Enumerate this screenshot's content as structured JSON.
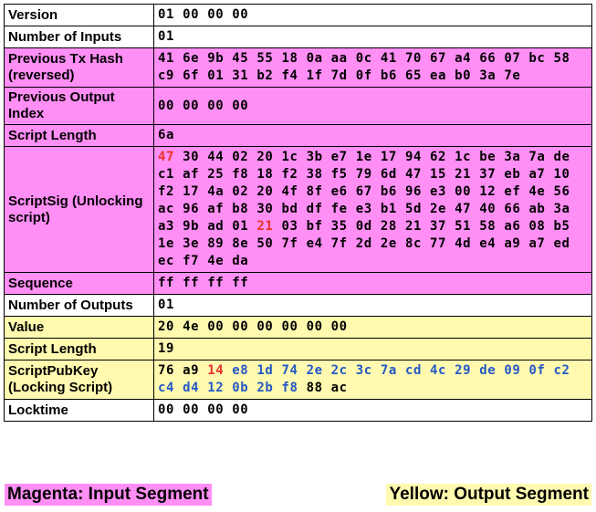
{
  "colors": {
    "input_segment": "#ff8ef5",
    "output_segment": "#fffab0",
    "plain": "#ffffff",
    "length_byte": "#e8332a",
    "pubkey_hash": "#2458c4",
    "default_text": "#000000"
  },
  "rows": [
    {
      "field": "Version",
      "segment": "plain",
      "tokens": [
        {
          "t": "01"
        },
        {
          "t": "00"
        },
        {
          "t": "00"
        },
        {
          "t": "00"
        }
      ]
    },
    {
      "field": "Number of Inputs",
      "segment": "plain",
      "tokens": [
        {
          "t": "01"
        }
      ]
    },
    {
      "field": "Previous Tx Hash (reversed)",
      "segment": "input",
      "tokens": [
        {
          "t": "41"
        },
        {
          "t": "6e"
        },
        {
          "t": "9b"
        },
        {
          "t": "45"
        },
        {
          "t": "55"
        },
        {
          "t": "18"
        },
        {
          "t": "0a"
        },
        {
          "t": "aa"
        },
        {
          "t": "0c"
        },
        {
          "t": "41"
        },
        {
          "t": "70"
        },
        {
          "t": "67"
        },
        {
          "t": "a4"
        },
        {
          "t": "66"
        },
        {
          "t": "07"
        },
        {
          "t": "bc"
        },
        {
          "t": "58"
        },
        {
          "t": "c9"
        },
        {
          "t": "6f"
        },
        {
          "t": "01"
        },
        {
          "t": "31"
        },
        {
          "t": "b2"
        },
        {
          "t": "f4"
        },
        {
          "t": "1f"
        },
        {
          "t": "7d"
        },
        {
          "t": "0f"
        },
        {
          "t": "b6"
        },
        {
          "t": "65"
        },
        {
          "t": "ea"
        },
        {
          "t": "b0"
        },
        {
          "t": "3a"
        },
        {
          "t": "7e"
        }
      ]
    },
    {
      "field": "Previous Output Index",
      "segment": "input",
      "tokens": [
        {
          "t": "00"
        },
        {
          "t": "00"
        },
        {
          "t": "00"
        },
        {
          "t": "00"
        }
      ]
    },
    {
      "field": "Script Length",
      "segment": "input",
      "tokens": [
        {
          "t": "6a"
        }
      ]
    },
    {
      "field": "ScriptSig (Unlocking script)",
      "segment": "input",
      "tokens": [
        {
          "t": "47",
          "c": "red"
        },
        {
          "t": "30"
        },
        {
          "t": "44"
        },
        {
          "t": "02"
        },
        {
          "t": "20"
        },
        {
          "t": "1c"
        },
        {
          "t": "3b"
        },
        {
          "t": "e7"
        },
        {
          "t": "1e"
        },
        {
          "t": "17"
        },
        {
          "t": "94"
        },
        {
          "t": "62"
        },
        {
          "t": "1c"
        },
        {
          "t": "be"
        },
        {
          "t": "3a"
        },
        {
          "t": "7a"
        },
        {
          "t": "de"
        },
        {
          "t": "c1"
        },
        {
          "t": "af"
        },
        {
          "t": "25"
        },
        {
          "t": "f8"
        },
        {
          "t": "18"
        },
        {
          "t": "f2"
        },
        {
          "t": "38"
        },
        {
          "t": "f5"
        },
        {
          "t": "79"
        },
        {
          "t": "6d"
        },
        {
          "t": "47"
        },
        {
          "t": "15"
        },
        {
          "t": "21"
        },
        {
          "t": "37"
        },
        {
          "t": "eb"
        },
        {
          "t": "a7"
        },
        {
          "t": "10"
        },
        {
          "t": "f2"
        },
        {
          "t": "17"
        },
        {
          "t": "4a"
        },
        {
          "t": "02"
        },
        {
          "t": "20"
        },
        {
          "t": "4f"
        },
        {
          "t": "8f"
        },
        {
          "t": "e6"
        },
        {
          "t": "67"
        },
        {
          "t": "b6"
        },
        {
          "t": "96"
        },
        {
          "t": "e3"
        },
        {
          "t": "00"
        },
        {
          "t": "12"
        },
        {
          "t": "ef"
        },
        {
          "t": "4e"
        },
        {
          "t": "56"
        },
        {
          "t": "ac"
        },
        {
          "t": "96"
        },
        {
          "t": "af"
        },
        {
          "t": "b8"
        },
        {
          "t": "30"
        },
        {
          "t": "bd"
        },
        {
          "t": "df"
        },
        {
          "t": "fe"
        },
        {
          "t": "e3"
        },
        {
          "t": "b1"
        },
        {
          "t": "5d"
        },
        {
          "t": "2e"
        },
        {
          "t": "47"
        },
        {
          "t": "40"
        },
        {
          "t": "66"
        },
        {
          "t": "ab"
        },
        {
          "t": "3a"
        },
        {
          "t": "a3"
        },
        {
          "t": "9b"
        },
        {
          "t": "ad"
        },
        {
          "t": "01"
        },
        {
          "t": "21",
          "c": "red"
        },
        {
          "t": "03"
        },
        {
          "t": "bf"
        },
        {
          "t": "35"
        },
        {
          "t": "0d"
        },
        {
          "t": "28"
        },
        {
          "t": "21"
        },
        {
          "t": "37"
        },
        {
          "t": "51"
        },
        {
          "t": "58"
        },
        {
          "t": "a6"
        },
        {
          "t": "08"
        },
        {
          "t": "b5"
        },
        {
          "t": "1e"
        },
        {
          "t": "3e"
        },
        {
          "t": "89"
        },
        {
          "t": "8e"
        },
        {
          "t": "50"
        },
        {
          "t": "7f"
        },
        {
          "t": "e4"
        },
        {
          "t": "7f"
        },
        {
          "t": "2d"
        },
        {
          "t": "2e"
        },
        {
          "t": "8c"
        },
        {
          "t": "77"
        },
        {
          "t": "4d"
        },
        {
          "t": "e4"
        },
        {
          "t": "a9"
        },
        {
          "t": "a7"
        },
        {
          "t": "ed"
        },
        {
          "t": "ec"
        },
        {
          "t": "f7"
        },
        {
          "t": "4e"
        },
        {
          "t": "da"
        }
      ]
    },
    {
      "field": "Sequence",
      "segment": "input",
      "tokens": [
        {
          "t": "ff"
        },
        {
          "t": "ff"
        },
        {
          "t": "ff"
        },
        {
          "t": "ff"
        }
      ]
    },
    {
      "field": "Number of Outputs",
      "segment": "plain",
      "tokens": [
        {
          "t": "01"
        }
      ]
    },
    {
      "field": "Value",
      "segment": "output",
      "tokens": [
        {
          "t": "20"
        },
        {
          "t": "4e"
        },
        {
          "t": "00"
        },
        {
          "t": "00"
        },
        {
          "t": "00"
        },
        {
          "t": "00"
        },
        {
          "t": "00"
        },
        {
          "t": "00"
        }
      ]
    },
    {
      "field": "Script Length",
      "segment": "output",
      "tokens": [
        {
          "t": "19"
        }
      ]
    },
    {
      "field": "ScriptPubKey (Locking Script)",
      "segment": "output",
      "tokens": [
        {
          "t": "76"
        },
        {
          "t": "a9"
        },
        {
          "t": "14",
          "c": "red"
        },
        {
          "t": "e8",
          "c": "blue"
        },
        {
          "t": "1d",
          "c": "blue"
        },
        {
          "t": "74",
          "c": "blue"
        },
        {
          "t": "2e",
          "c": "blue"
        },
        {
          "t": "2c",
          "c": "blue"
        },
        {
          "t": "3c",
          "c": "blue"
        },
        {
          "t": "7a",
          "c": "blue"
        },
        {
          "t": "cd",
          "c": "blue"
        },
        {
          "t": "4c",
          "c": "blue"
        },
        {
          "t": "29",
          "c": "blue"
        },
        {
          "t": "de",
          "c": "blue"
        },
        {
          "t": "09",
          "c": "blue"
        },
        {
          "t": "0f",
          "c": "blue"
        },
        {
          "t": "c2",
          "c": "blue"
        },
        {
          "t": "c4",
          "c": "blue"
        },
        {
          "t": "d4",
          "c": "blue"
        },
        {
          "t": "12",
          "c": "blue"
        },
        {
          "t": "0b",
          "c": "blue"
        },
        {
          "t": "2b",
          "c": "blue"
        },
        {
          "t": "f8",
          "c": "blue"
        },
        {
          "t": "88"
        },
        {
          "t": "ac"
        }
      ]
    },
    {
      "field": "Locktime",
      "segment": "plain",
      "tokens": [
        {
          "t": "00"
        },
        {
          "t": "00"
        },
        {
          "t": "00"
        },
        {
          "t": "00"
        }
      ]
    }
  ],
  "legend": {
    "input": "Magenta: Input Segment",
    "output": "Yellow: Output Segment"
  }
}
